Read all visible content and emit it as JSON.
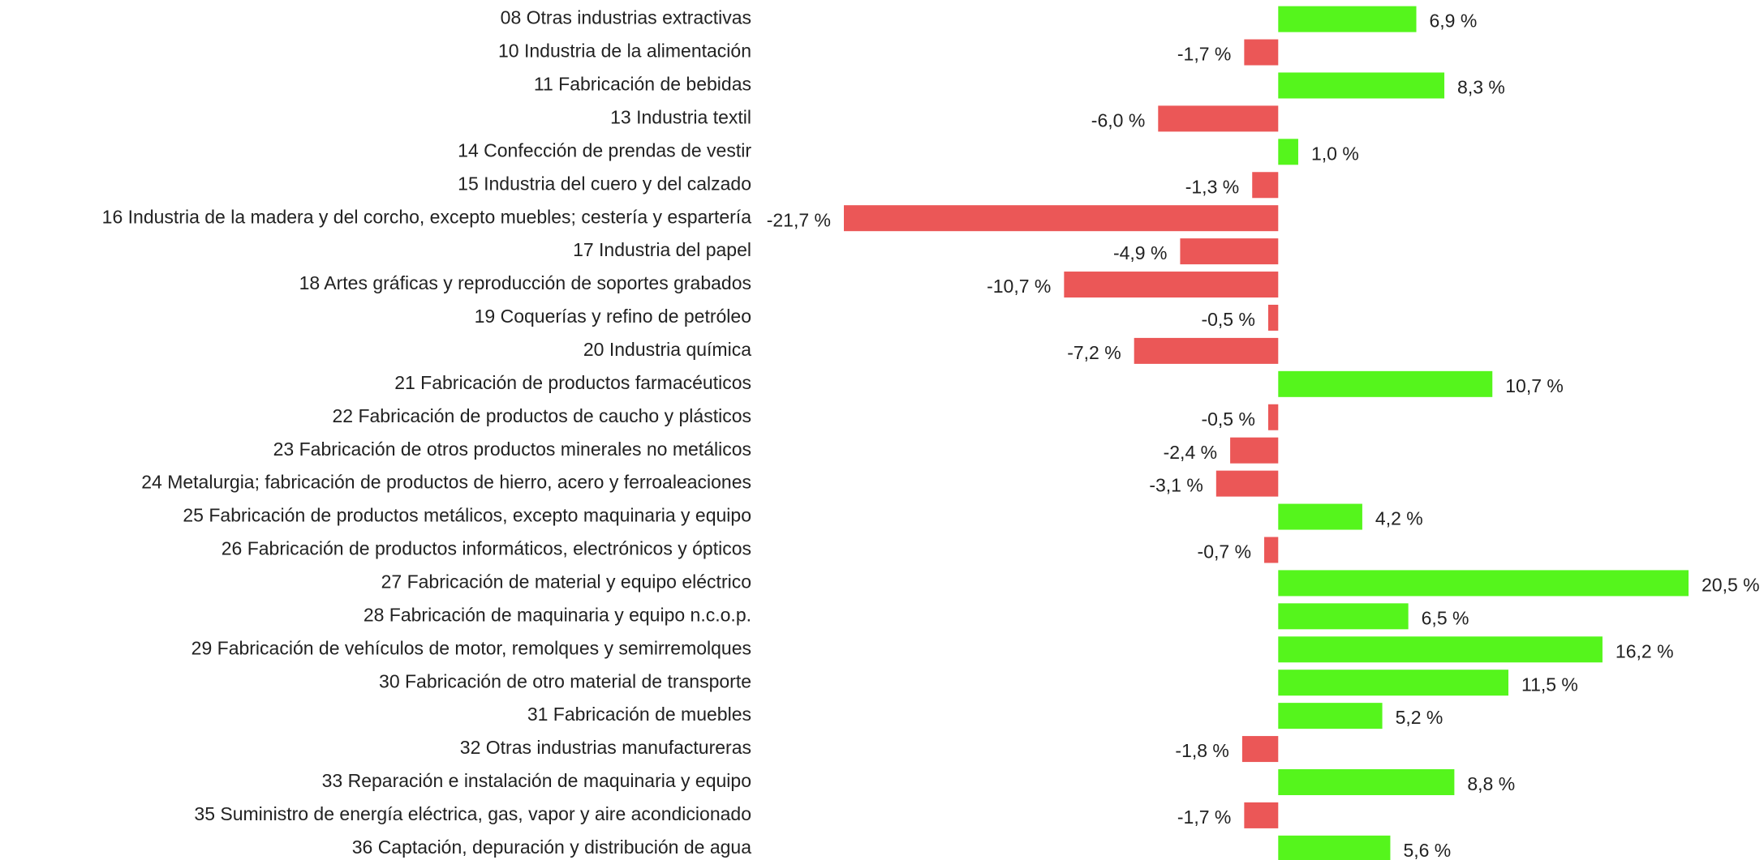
{
  "chart_data": {
    "type": "bar",
    "orientation": "horizontal",
    "categories": [
      "08 Otras industrias extractivas",
      "10 Industria de la alimentación",
      "11 Fabricación de bebidas",
      "13 Industria textil",
      "14 Confección de prendas de vestir",
      "15 Industria del cuero y del calzado",
      "16 Industria de la madera y del corcho, excepto muebles; cestería y espartería",
      "17 Industria del papel",
      "18 Artes gráficas y reproducción de soportes grabados",
      "19 Coquerías y refino de petróleo",
      "20 Industria química",
      "21 Fabricación de productos farmacéuticos",
      "22 Fabricación de productos de caucho y plásticos",
      "23 Fabricación de otros productos minerales no metálicos",
      "24 Metalurgia; fabricación de productos de hierro, acero y ferroaleaciones",
      "25 Fabricación de productos metálicos, excepto maquinaria y equipo",
      "26 Fabricación de productos informáticos, electrónicos y ópticos",
      "27 Fabricación de material y equipo eléctrico",
      "28 Fabricación de maquinaria y equipo n.c.o.p.",
      "29 Fabricación de vehículos de motor, remolques y semirremolques",
      "30 Fabricación de otro material de transporte",
      "31 Fabricación de muebles",
      "32 Otras industrias manufactureras",
      "33 Reparación e instalación de maquinaria y equipo",
      "35 Suministro de energía eléctrica, gas, vapor y aire acondicionado",
      "36 Captación, depuración y distribución de agua"
    ],
    "values": [
      6.9,
      -1.7,
      8.3,
      -6.0,
      1.0,
      -1.3,
      -21.7,
      -4.9,
      -10.7,
      -0.5,
      -7.2,
      10.7,
      -0.5,
      -2.4,
      -3.1,
      4.2,
      -0.7,
      20.5,
      6.5,
      16.2,
      11.5,
      5.2,
      -1.8,
      8.8,
      -1.7,
      5.6
    ],
    "value_labels": [
      "6,9 %",
      "-1,7 %",
      "8,3 %",
      "-6,0 %",
      "1,0 %",
      "-1,3 %",
      "-21,7 %",
      "-4,9 %",
      "-10,7 %",
      "-0,5 %",
      "-7,2 %",
      "10,7 %",
      "-0,5 %",
      "-2,4 %",
      "-3,1 %",
      "4,2 %",
      "-0,7 %",
      "20,5 %",
      "6,5 %",
      "16,2 %",
      "11,5 %",
      "5,2 %",
      "-1,8 %",
      "8,8 %",
      "-1,7 %",
      "5,6 %"
    ],
    "positive_color": "#55f51c",
    "negative_color": "#eb5757"
  }
}
